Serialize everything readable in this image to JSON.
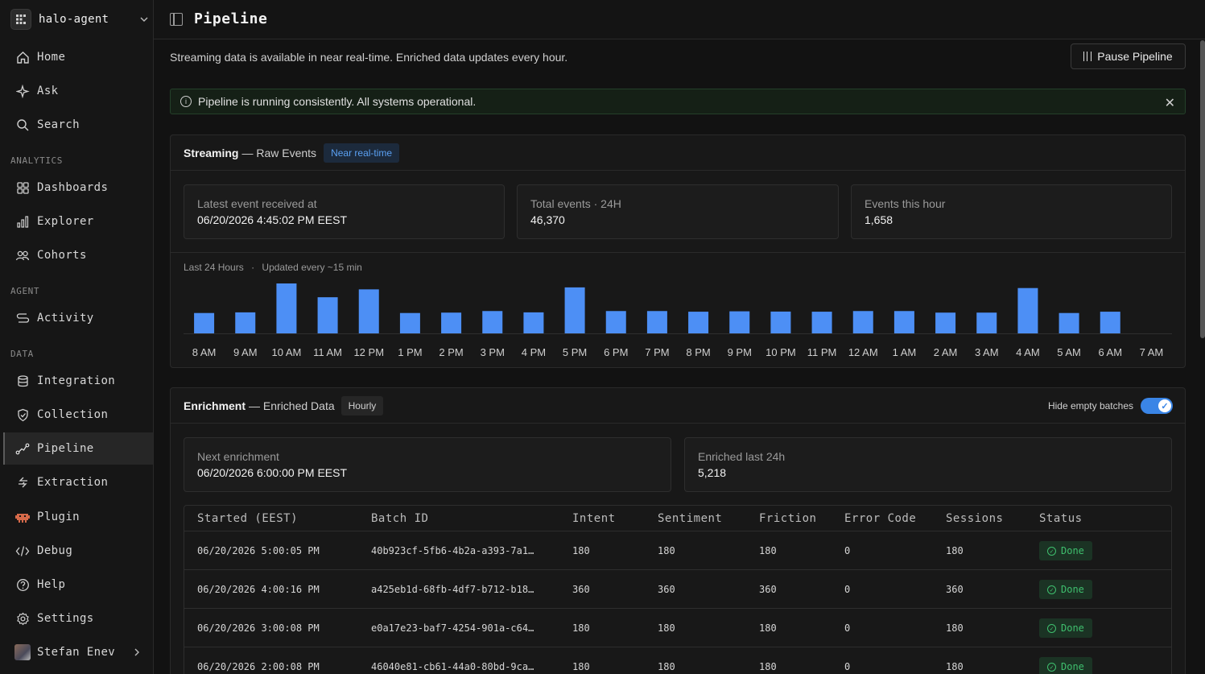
{
  "workspace": {
    "name": "halo-agent"
  },
  "sidebar": {
    "top_items": [
      {
        "label": "Home",
        "icon": "home-icon"
      },
      {
        "label": "Ask",
        "icon": "sparkle-icon"
      },
      {
        "label": "Search",
        "icon": "search-icon"
      }
    ],
    "sections": [
      {
        "title": "ANALYTICS",
        "items": [
          {
            "label": "Dashboards",
            "icon": "dashboards-icon"
          },
          {
            "label": "Explorer",
            "icon": "explorer-icon"
          },
          {
            "label": "Cohorts",
            "icon": "cohorts-icon"
          }
        ]
      },
      {
        "title": "AGENT",
        "items": [
          {
            "label": "Activity",
            "icon": "activity-icon"
          }
        ]
      },
      {
        "title": "DATA",
        "items": [
          {
            "label": "Integration",
            "icon": "database-icon"
          },
          {
            "label": "Collection",
            "icon": "shield-check-icon"
          },
          {
            "label": "Pipeline",
            "icon": "pipeline-icon",
            "active": true
          },
          {
            "label": "Extraction",
            "icon": "extraction-icon"
          }
        ]
      }
    ],
    "bottom_items": [
      {
        "label": "Plugin",
        "icon": "plugin-icon"
      },
      {
        "label": "Debug",
        "icon": "code-icon"
      },
      {
        "label": "Help",
        "icon": "help-icon"
      },
      {
        "label": "Settings",
        "icon": "gear-icon"
      }
    ],
    "user": {
      "name": "Stefan Enev"
    }
  },
  "header": {
    "title": "Pipeline"
  },
  "main": {
    "subtitle": "Streaming data is available in near real-time. Enriched data updates every hour.",
    "pause_label": "Pause Pipeline",
    "alert": "Pipeline is running consistently. All systems operational.",
    "streaming": {
      "title": "Streaming",
      "sub": "— Raw Events",
      "tag": "Near real-time",
      "stats": [
        {
          "label": "Latest event received at",
          "value": "06/20/2026 4:45:02 PM EEST"
        },
        {
          "label": "Total events · 24H",
          "value": "46,370"
        },
        {
          "label": "Events this hour",
          "value": "1,658"
        }
      ],
      "chart_caption": "Last 24 Hours",
      "chart_caption2": "Updated every ~15 min"
    },
    "enrichment": {
      "title": "Enrichment",
      "sub": "— Enriched Data",
      "tag": "Hourly",
      "toggle_label": "Hide empty batches",
      "toggle_on": true,
      "stats": [
        {
          "label": "Next enrichment",
          "value": "06/20/2026 6:00:00 PM EEST"
        },
        {
          "label": "Enriched last 24h",
          "value": "5,218"
        }
      ],
      "columns": [
        "Started (EEST)",
        "Batch ID",
        "Intent",
        "Sentiment",
        "Friction",
        "Error Code",
        "Sessions",
        "Status"
      ],
      "rows": [
        [
          "06/20/2026 5:00:05 PM",
          "40b923cf-5fb6-4b2a-a393-7a1…",
          "180",
          "180",
          "180",
          "0",
          "180",
          "Done"
        ],
        [
          "06/20/2026 4:00:16 PM",
          "a425eb1d-68fb-4df7-b712-b18…",
          "360",
          "360",
          "360",
          "0",
          "360",
          "Done"
        ],
        [
          "06/20/2026 3:00:08 PM",
          "e0a17e23-baf7-4254-901a-c64…",
          "180",
          "180",
          "180",
          "0",
          "180",
          "Done"
        ],
        [
          "06/20/2026 2:00:08 PM",
          "46040e81-cb61-44a0-80bd-9ca…",
          "180",
          "180",
          "180",
          "0",
          "180",
          "Done"
        ]
      ]
    }
  },
  "chart_data": {
    "type": "bar",
    "categories": [
      "8 AM",
      "9 AM",
      "10 AM",
      "11 AM",
      "12 PM",
      "1 PM",
      "2 PM",
      "3 PM",
      "4 PM",
      "5 PM",
      "6 PM",
      "7 PM",
      "8 PM",
      "9 PM",
      "10 PM",
      "11 PM",
      "12 AM",
      "1 AM",
      "2 AM",
      "3 AM",
      "4 AM",
      "5 AM",
      "6 AM",
      "7 AM"
    ],
    "values": [
      1550,
      1600,
      3800,
      2750,
      3350,
      1550,
      1580,
      1700,
      1600,
      3500,
      1700,
      1700,
      1650,
      1680,
      1660,
      1650,
      1700,
      1700,
      1580,
      1580,
      3450,
      1550,
      1650,
      0
    ],
    "color": "#4d8ff5"
  }
}
